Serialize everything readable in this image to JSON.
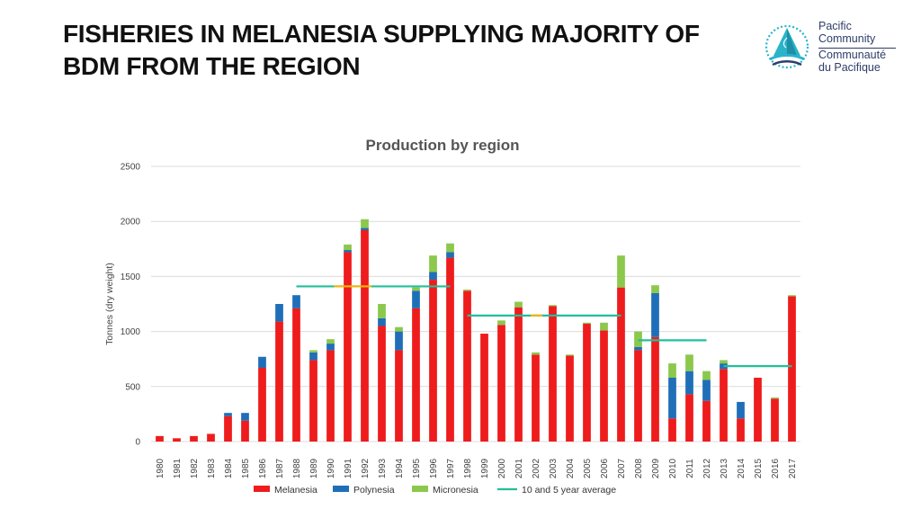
{
  "slide": {
    "title_line1": "FISHERIES IN MELANESIA SUPPLYING MAJORITY OF",
    "title_line2": "BDM FROM THE REGION"
  },
  "logo": {
    "line1": "Pacific",
    "line2": "Community",
    "line3": "Communauté",
    "line4": "du Pacifique",
    "icon": "pacific-community-emblem-icon"
  },
  "colors": {
    "melanesia": "#ee1c1c",
    "polynesia": "#1f6fb8",
    "micronesia": "#8cc84b",
    "average": "#21bf9a",
    "average_overlap": "#f5b40a",
    "grid": "#dcdcdc"
  },
  "chart_data": {
    "type": "bar",
    "stacked": true,
    "title": "Production by region",
    "xlabel": "",
    "ylabel": "Tonnes (dry weight)",
    "ylim": [
      0,
      2500
    ],
    "yticks": [
      0,
      500,
      1000,
      1500,
      2000,
      2500
    ],
    "grid": true,
    "legend_position": "bottom",
    "categories": [
      "1980",
      "1981",
      "1982",
      "1983",
      "1984",
      "1985",
      "1986",
      "1987",
      "1988",
      "1989",
      "1990",
      "1991",
      "1992",
      "1993",
      "1994",
      "1995",
      "1996",
      "1997",
      "1998",
      "1999",
      "2000",
      "2001",
      "2002",
      "2003",
      "2004",
      "2005",
      "2006",
      "2007",
      "2008",
      "2009",
      "2010",
      "2011",
      "2012",
      "2013",
      "2014",
      "2015",
      "2016",
      "2017"
    ],
    "series": [
      {
        "name": "Melanesia",
        "values": [
          50,
          30,
          50,
          70,
          230,
          190,
          670,
          1090,
          1210,
          740,
          830,
          1720,
          1920,
          1050,
          830,
          1210,
          1470,
          1670,
          1370,
          980,
          1060,
          1220,
          790,
          1230,
          780,
          1070,
          1010,
          1400,
          830,
          950,
          210,
          430,
          370,
          660,
          210,
          580,
          390,
          1320
        ]
      },
      {
        "name": "Polynesia",
        "values": [
          0,
          0,
          0,
          0,
          30,
          70,
          100,
          160,
          120,
          70,
          60,
          20,
          20,
          70,
          170,
          160,
          70,
          50,
          0,
          0,
          0,
          0,
          0,
          0,
          0,
          0,
          0,
          0,
          30,
          400,
          370,
          210,
          190,
          50,
          150,
          0,
          0,
          0
        ]
      },
      {
        "name": "Micronesia",
        "values": [
          0,
          0,
          0,
          0,
          0,
          0,
          0,
          0,
          0,
          20,
          40,
          50,
          80,
          130,
          40,
          30,
          150,
          80,
          10,
          0,
          40,
          50,
          20,
          10,
          10,
          10,
          70,
          290,
          140,
          70,
          130,
          150,
          80,
          30,
          0,
          0,
          10,
          10
        ]
      }
    ],
    "averages": {
      "name": "10 and 5 year average",
      "segments": [
        {
          "from": "1988",
          "to": "1997",
          "value": 1410
        },
        {
          "from": "1998",
          "to": "2007",
          "value": 1145
        },
        {
          "from": "2008",
          "to": "2012",
          "value": 920
        },
        {
          "from": "2013",
          "to": "2017",
          "value": 685
        }
      ]
    },
    "legend": [
      "Melanesia",
      "Polynesia",
      "Micronesia",
      "10 and 5 year average"
    ]
  }
}
